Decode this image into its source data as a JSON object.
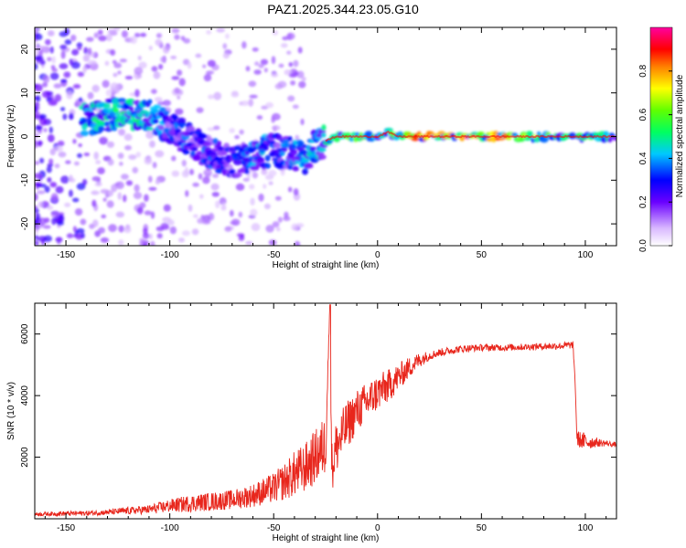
{
  "page_title": "PAZ1.2025.344.23.05.G10",
  "colorbar": {
    "label": "Normalized spectral amplitude",
    "ticks": [
      "0.0",
      "0.2",
      "0.4",
      "0.6",
      "0.8"
    ],
    "colormap": [
      "#ffffff",
      "#6a00ff",
      "#0000ff",
      "#00ffff",
      "#00ff00",
      "#ffff00",
      "#ff0000",
      "#ff00ff"
    ]
  },
  "chart_data": [
    {
      "type": "heatmap",
      "title": "",
      "xlabel": "Height of straight line (km)",
      "ylabel": "Frequency (Hz)",
      "xlim": [
        -165,
        115
      ],
      "ylim": [
        -25,
        25
      ],
      "xticks": [
        "-150",
        "-100",
        "-50",
        "0",
        "50",
        "100"
      ],
      "yticks": [
        "-20",
        "-10",
        "0",
        "10",
        "20"
      ],
      "zlim": [
        0,
        1
      ],
      "ridge": {
        "x": [
          -140,
          -130,
          -120,
          -110,
          -100,
          -90,
          -80,
          -70,
          -60,
          -50,
          -40,
          -35,
          -30,
          -25,
          -20,
          -10,
          0,
          5,
          10,
          20,
          40,
          60,
          80,
          100,
          115
        ],
        "frequency": [
          4,
          5,
          5,
          5,
          2,
          -1,
          -4,
          -6,
          -4,
          -3,
          -4,
          -5,
          -2,
          -1,
          0,
          0,
          0,
          1,
          0,
          0,
          0,
          0,
          0,
          0,
          0
        ],
        "amplitude": [
          0.45,
          0.5,
          0.5,
          0.45,
          0.35,
          0.35,
          0.35,
          0.3,
          0.4,
          0.4,
          0.4,
          0.45,
          0.45,
          0.5,
          0.55,
          0.6,
          0.6,
          0.65,
          0.8,
          0.85,
          0.9,
          0.9,
          0.6,
          0.55,
          0.5
        ]
      }
    },
    {
      "type": "line",
      "title": "",
      "xlabel": "Height of straight line (km)",
      "ylabel": "SNR (10 * v/v)",
      "xlim": [
        -165,
        115
      ],
      "ylim": [
        0,
        7000
      ],
      "xticks": [
        "-150",
        "-100",
        "-50",
        "0",
        "50",
        "100"
      ],
      "yticks": [
        "2000",
        "4000",
        "6000"
      ],
      "series": [
        {
          "name": "SNR",
          "color": "#e8261c",
          "x": [
            -165,
            -150,
            -140,
            -130,
            -120,
            -110,
            -100,
            -90,
            -80,
            -70,
            -60,
            -50,
            -45,
            -40,
            -35,
            -30,
            -25,
            -23,
            -22,
            -20,
            -15,
            -10,
            -5,
            0,
            5,
            10,
            15,
            20,
            25,
            30,
            40,
            50,
            60,
            70,
            80,
            90,
            94,
            95,
            96,
            100,
            105,
            110,
            115
          ],
          "y": [
            150,
            170,
            180,
            210,
            260,
            300,
            420,
            500,
            560,
            620,
            760,
            1000,
            1200,
            1450,
            1650,
            2000,
            2400,
            6900,
            1600,
            2300,
            3000,
            3500,
            3800,
            4100,
            4300,
            4600,
            4900,
            5150,
            5300,
            5400,
            5520,
            5560,
            5560,
            5580,
            5600,
            5620,
            5650,
            4600,
            2600,
            2500,
            2480,
            2450,
            2400
          ],
          "noise": [
            60,
            80,
            80,
            90,
            120,
            150,
            220,
            280,
            300,
            320,
            380,
            500,
            600,
            750,
            800,
            900,
            1000,
            0,
            900,
            900,
            800,
            700,
            650,
            600,
            550,
            450,
            350,
            250,
            150,
            130,
            120,
            110,
            110,
            110,
            110,
            120,
            120,
            0,
            250,
            300,
            150,
            100,
            80
          ]
        }
      ]
    }
  ]
}
